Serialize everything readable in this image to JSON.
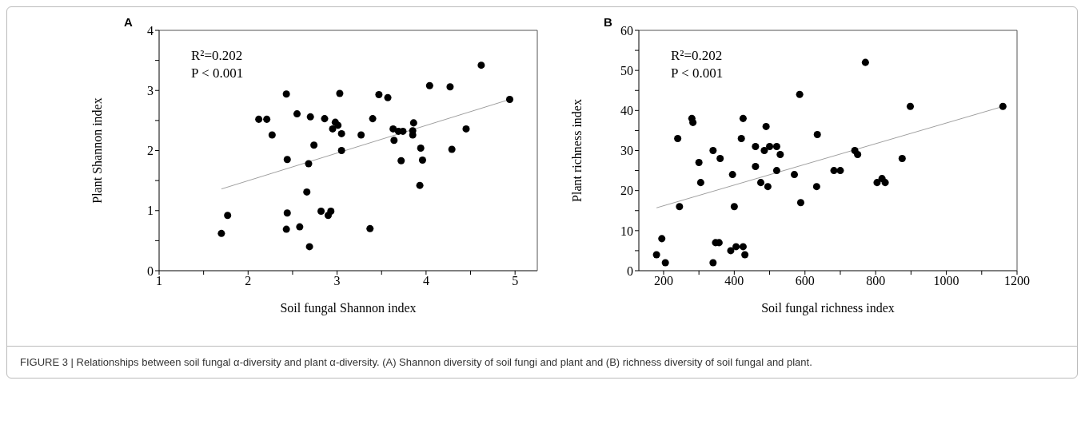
{
  "chart_data": [
    {
      "type": "scatter",
      "title": "A",
      "xlabel": "Soil fungal Shannon index",
      "ylabel": "Plant Shannon index",
      "xlim": [
        1,
        5.25
      ],
      "ylim": [
        0,
        4
      ],
      "xticks": [
        1,
        {
          "value": 1.5,
          "label": null
        },
        2,
        {
          "value": 2.5,
          "label": null
        },
        3,
        {
          "value": 3.5,
          "label": null
        },
        4,
        {
          "value": 4.5,
          "label": null
        },
        5
      ],
      "yticks": [
        0,
        {
          "value": 0.5,
          "label": null
        },
        1,
        {
          "value": 1.5,
          "label": null
        },
        2,
        {
          "value": 2.5,
          "label": null
        },
        3,
        {
          "value": 3.5,
          "label": null
        },
        4
      ],
      "grid": false,
      "annotations": [
        "R²=0.202",
        "P < 0.001"
      ],
      "series": [
        {
          "marker": "circle",
          "color": "#000000",
          "x": [
            1.7,
            1.77,
            2.12,
            2.21,
            2.27,
            2.43,
            2.55,
            2.7,
            2.86,
            2.74,
            2.44,
            2.68,
            2.66,
            2.44,
            2.43,
            2.58,
            2.69,
            2.82,
            2.9,
            2.93,
            2.95,
            2.98,
            3.01,
            3.03,
            3.05,
            3.05,
            3.27,
            3.4,
            3.37,
            3.47,
            3.57,
            3.63,
            3.64,
            3.69,
            3.74,
            3.72,
            3.86,
            3.85,
            3.85,
            3.94,
            3.96,
            3.93,
            4.04,
            4.27,
            4.29,
            4.45,
            4.62,
            4.94
          ],
          "values": [
            0.62,
            0.92,
            2.52,
            2.52,
            2.26,
            2.94,
            2.61,
            2.56,
            2.53,
            2.09,
            1.85,
            1.78,
            1.31,
            0.96,
            0.69,
            0.73,
            0.4,
            0.99,
            0.92,
            0.99,
            2.36,
            2.47,
            2.42,
            2.95,
            2.28,
            2.0,
            2.26,
            2.53,
            0.7,
            2.93,
            2.88,
            2.36,
            2.17,
            2.32,
            2.32,
            1.83,
            2.46,
            2.33,
            2.26,
            2.04,
            1.84,
            1.42,
            3.08,
            3.06,
            2.02,
            2.36,
            3.42,
            2.85
          ]
        },
        {
          "type": "line",
          "color": "#a0a0a0",
          "x": [
            1.7,
            4.94
          ],
          "values": [
            1.36,
            2.85
          ]
        }
      ]
    },
    {
      "type": "scatter",
      "title": "B",
      "xlabel": "Soil fungal richness index",
      "ylabel": "Plant richness index",
      "xlim": [
        130,
        1200
      ],
      "ylim": [
        0,
        60
      ],
      "xticks": [
        200,
        {
          "value": 300,
          "label": null
        },
        400,
        {
          "value": 500,
          "label": null
        },
        600,
        {
          "value": 700,
          "label": null
        },
        800,
        {
          "value": 900,
          "label": null
        },
        1000,
        {
          "value": 1100,
          "label": null
        },
        1200
      ],
      "yticks": [
        0,
        {
          "value": 5,
          "label": null
        },
        10,
        {
          "value": 15,
          "label": null
        },
        20,
        {
          "value": 25,
          "label": null
        },
        30,
        {
          "value": 35,
          "label": null
        },
        40,
        {
          "value": 45,
          "label": null
        },
        50,
        {
          "value": 55,
          "label": null
        },
        60
      ],
      "grid": false,
      "annotations": [
        "R²=0.202",
        "P < 0.001",
        "FIGURE 3 | Relationships between soil fungal α-diversity and plant α-diversity. (A) Shannon diversity of soil fungi and plant and (B) richness diversity of soil fungal and plant."
      ],
      "series": [
        {
          "marker": "circle",
          "color": "#000000",
          "x": [
            180,
            195,
            205,
            240,
            245,
            280,
            283,
            300,
            305,
            340,
            340,
            347,
            357,
            360,
            390,
            395,
            400,
            405,
            420,
            425,
            425,
            430,
            460,
            460,
            475,
            485,
            490,
            495,
            500,
            520,
            520,
            530,
            570,
            585,
            588,
            635,
            633,
            682,
            700,
            741,
            749,
            771,
            804,
            818,
            827,
            875,
            898,
            1160
          ],
          "values": [
            4,
            8,
            2,
            33,
            16,
            38,
            37,
            27,
            22,
            30,
            2,
            7,
            7,
            28,
            5,
            24,
            16,
            6,
            33,
            38,
            6,
            4,
            26,
            31,
            22,
            30,
            36,
            21,
            31,
            31,
            25,
            29,
            24,
            44,
            17,
            34,
            21,
            25,
            25,
            30,
            29,
            52,
            22,
            23,
            22,
            28,
            41,
            41
          ]
        },
        {
          "type": "line",
          "color": "#a0a0a0",
          "x": [
            180,
            1160
          ],
          "values": [
            15.7,
            41
          ]
        }
      ]
    }
  ]
}
